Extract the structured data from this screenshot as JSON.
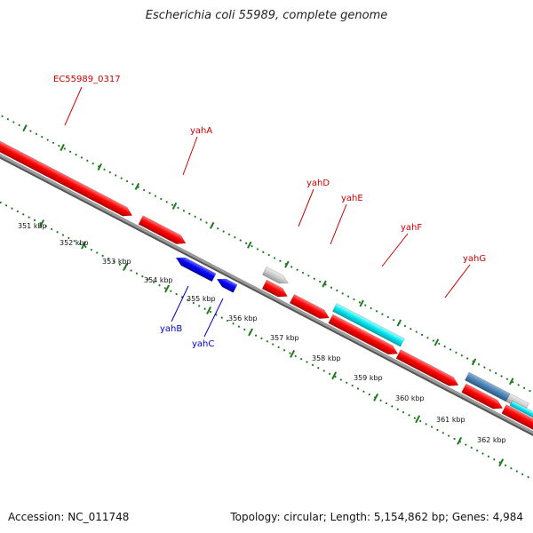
{
  "title": "Escherichia coli 55989, complete genome",
  "accession": "Accession: NC_011748",
  "summary": "Topology: circular; Length: 5,154,862 bp; Genes: 4,984",
  "colors": {
    "forward_gene": "#ff0000",
    "reverse_gene": "#0000ff",
    "pseudo": "#c8c8c8",
    "other_feature": "#00e5ee",
    "other_feature_alt": "#4682b4",
    "backbone": "#808080",
    "gc_ticks": "#1a7a1a",
    "label_forward": "#cc0000",
    "label_reverse": "#0000cc"
  },
  "ruler": [
    {
      "label": "351 kbp",
      "kbp": 351
    },
    {
      "label": "352 kbp",
      "kbp": 352
    },
    {
      "label": "353 kbp",
      "kbp": 353
    },
    {
      "label": "354 kbp",
      "kbp": 354
    },
    {
      "label": "355 kbp",
      "kbp": 355
    },
    {
      "label": "356 kbp",
      "kbp": 356
    },
    {
      "label": "357 kbp",
      "kbp": 357
    },
    {
      "label": "358 kbp",
      "kbp": 358
    },
    {
      "label": "359 kbp",
      "kbp": 359
    },
    {
      "label": "360 kbp",
      "kbp": 360
    },
    {
      "label": "361 kbp",
      "kbp": 361
    },
    {
      "label": "362 kbp",
      "kbp": 362
    }
  ],
  "gene_labels": [
    {
      "name": "EC55989_0317",
      "strand": "forward"
    },
    {
      "name": "yahA",
      "strand": "forward"
    },
    {
      "name": "yahD",
      "strand": "forward"
    },
    {
      "name": "yahE",
      "strand": "forward"
    },
    {
      "name": "yahF",
      "strand": "forward"
    },
    {
      "name": "yahG",
      "strand": "forward"
    },
    {
      "name": "yahB",
      "strand": "reverse"
    },
    {
      "name": "yahC",
      "strand": "reverse"
    }
  ]
}
